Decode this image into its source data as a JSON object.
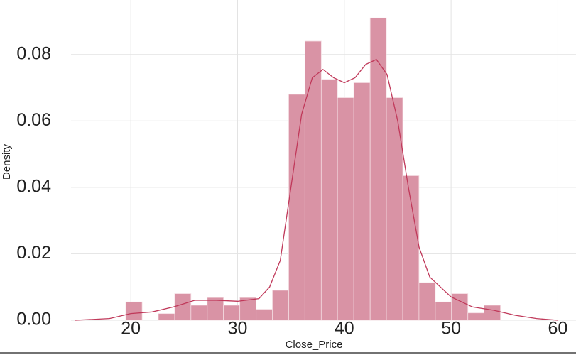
{
  "chart_data": {
    "type": "histogram",
    "xlabel": "Close_Price",
    "ylabel": "Density",
    "bins": [
      19.53,
      21.06,
      22.58,
      24.11,
      25.63,
      27.16,
      28.68,
      30.21,
      31.74,
      33.26,
      34.79,
      36.31,
      37.84,
      39.36,
      40.89,
      42.42,
      43.94,
      45.47,
      46.99,
      48.52,
      50.04,
      51.57,
      53.09,
      54.62
    ],
    "values": [
      0.0055,
      0,
      0.002,
      0.008,
      0.0045,
      0.0068,
      0.0045,
      0.0068,
      0.0033,
      0.009,
      0.068,
      0.084,
      0.0725,
      0.067,
      0.0715,
      0.091,
      0.067,
      0.0435,
      0.0113,
      0.0055,
      0.008,
      0.0022,
      0.0045
    ],
    "color": "#d993a5",
    "kde": {
      "x": [
        14.8,
        18,
        20,
        22,
        24,
        26,
        28,
        30,
        32,
        33,
        34,
        35,
        36,
        37,
        38,
        39,
        40,
        41,
        42,
        43,
        44,
        45,
        46,
        47,
        48,
        50,
        52,
        54,
        56,
        58,
        60
      ],
      "values": [
        0,
        0.0005,
        0.002,
        0.0025,
        0.004,
        0.006,
        0.006,
        0.0057,
        0.0065,
        0.01,
        0.018,
        0.04,
        0.062,
        0.073,
        0.0755,
        0.073,
        0.0715,
        0.073,
        0.077,
        0.0785,
        0.074,
        0.06,
        0.04,
        0.022,
        0.013,
        0.007,
        0.004,
        0.003,
        0.0015,
        0.0005,
        0
      ],
      "color": "#c0395a"
    },
    "xlim": [
      14.4,
      61.7
    ],
    "ylim": [
      0,
      0.0964
    ],
    "xticks": [
      20,
      30,
      40,
      50,
      60
    ],
    "yticks": [
      {
        "value": 0,
        "label": "0.00"
      },
      {
        "value": 0.02,
        "label": "0.02"
      },
      {
        "value": 0.04,
        "label": "0.04"
      },
      {
        "value": 0.06,
        "label": "0.06"
      },
      {
        "value": 0.08,
        "label": "0.08"
      }
    ],
    "grid": true
  }
}
